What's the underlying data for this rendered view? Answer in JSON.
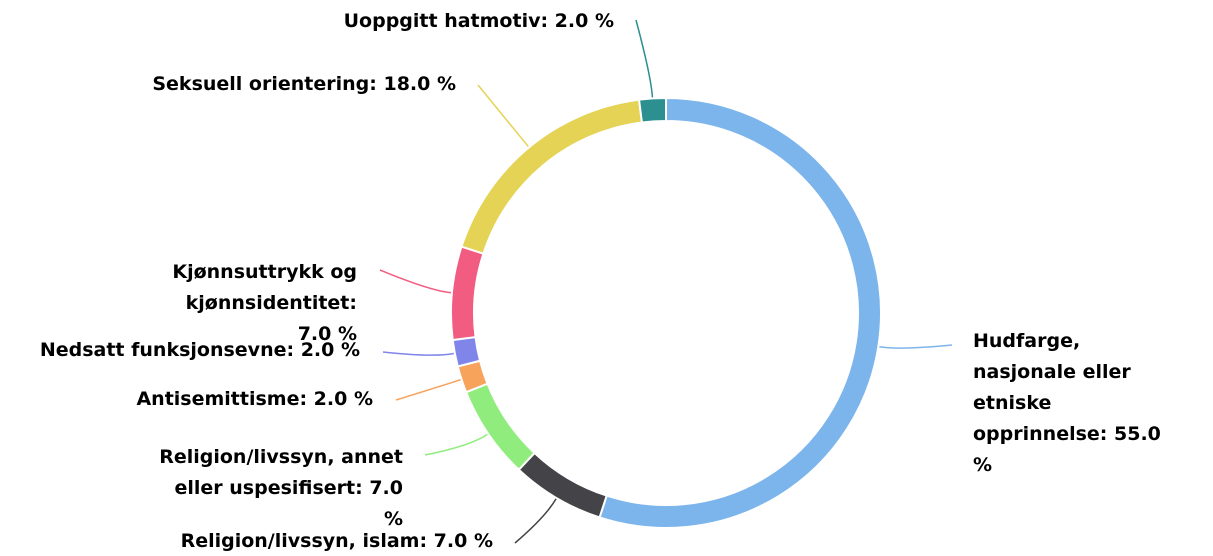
{
  "chart_data": {
    "type": "pie",
    "values": [
      55,
      7,
      7,
      2,
      2,
      7,
      18,
      2
    ],
    "value_labels": [
      "Hudfarge, nasjonale eller etniske opprinnelse: 55.0 %",
      "Religion/livssyn, islam: 7.0 %",
      "Religion/livssyn, annet eller uspesifisert: 7.0 %",
      "Antisemittisme: 2.0 %",
      "Nedsatt funksjonsevne: 2.0 %",
      "Kjønnsuttrykk og kjønnsidentitet: 7.0 %",
      "Seksuell orientering: 18.0 %",
      "Uoppgitt hatmotiv: 2.0 %"
    ],
    "colors": [
      "#7cb5ec",
      "#434348",
      "#90ed7d",
      "#f7a35c",
      "#8085e9",
      "#f15c80",
      "#e4d354",
      "#2b908f"
    ]
  }
}
